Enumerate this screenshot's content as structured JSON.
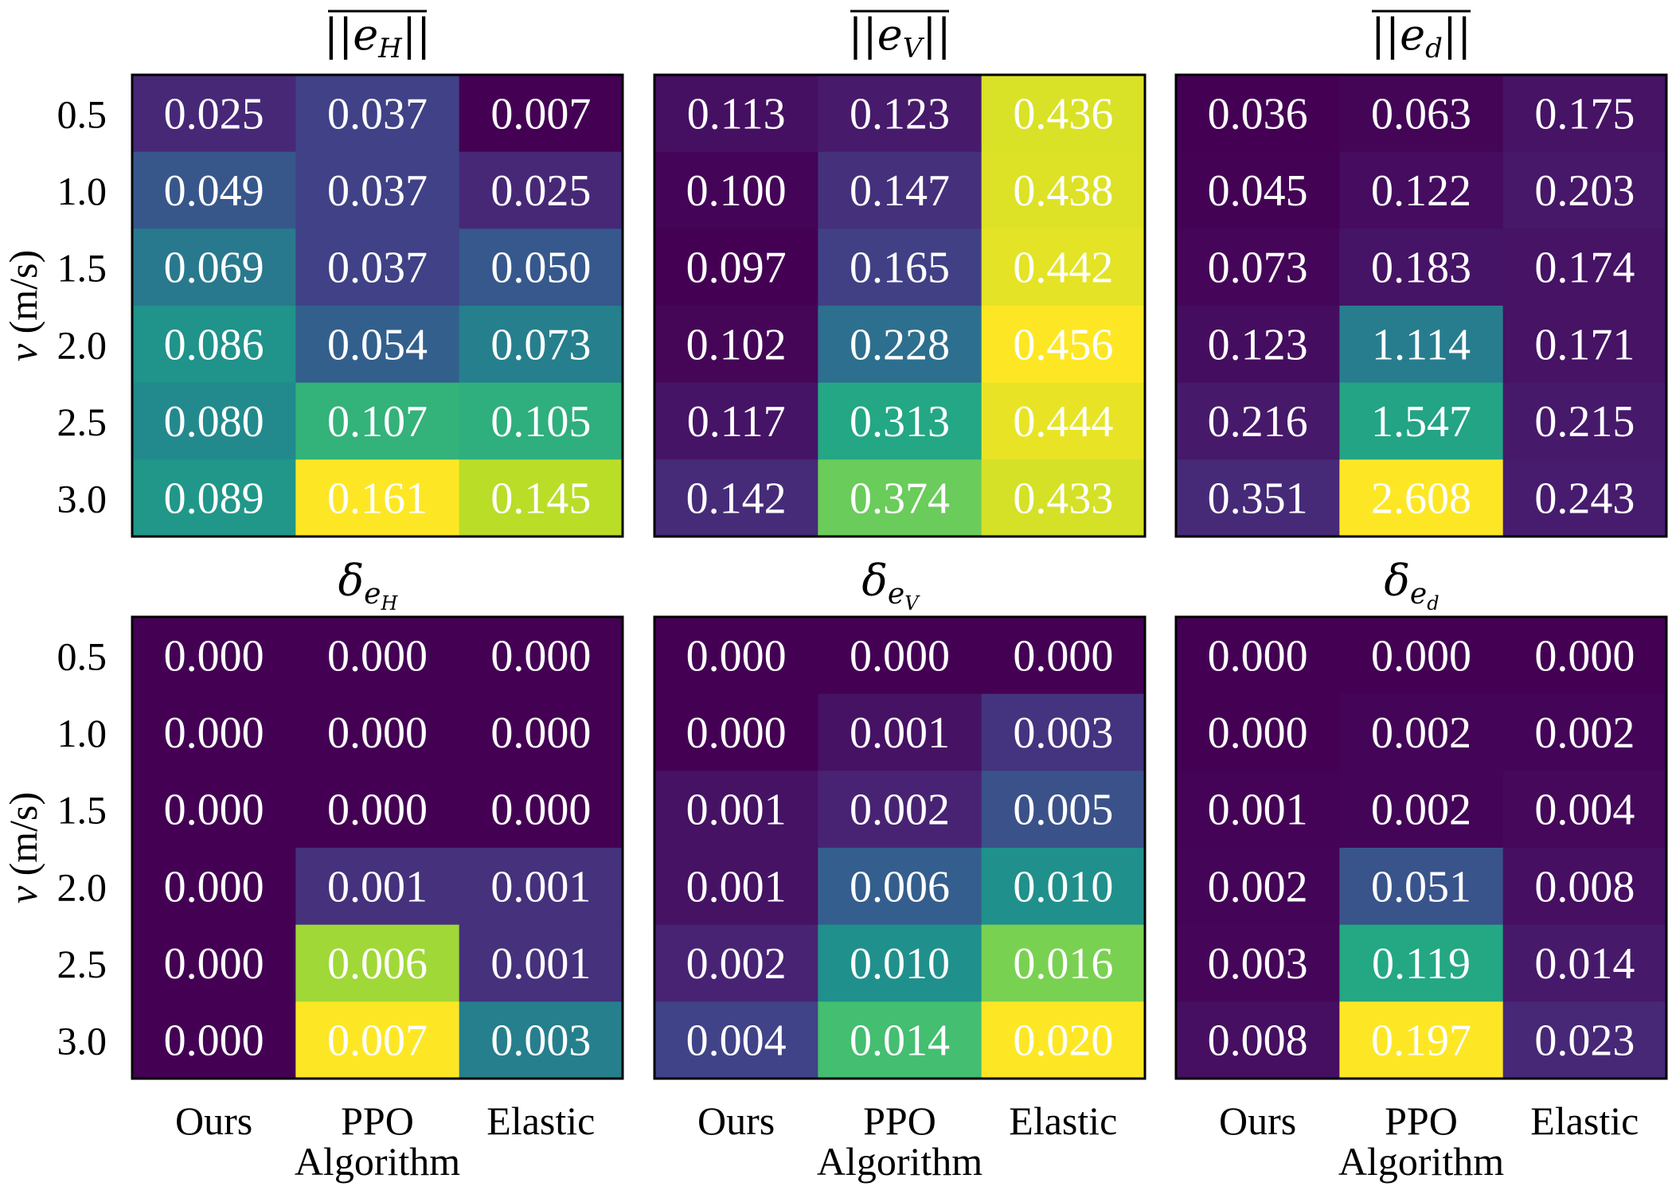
{
  "chart_data": {
    "type": "heatmap",
    "colormap": "viridis",
    "x_categories": [
      "Ours",
      "PPO",
      "Elastic"
    ],
    "y_categories": [
      "0.5",
      "1.0",
      "1.5",
      "2.0",
      "2.5",
      "3.0"
    ],
    "xlabel": "Algorithm",
    "ylabel": "v (m/s)",
    "ylabel_italic_part": "v",
    "ylabel_rest": " (m/s)",
    "panels": [
      {
        "title": "||e_H||",
        "title_base": "e",
        "title_sub": "H",
        "title_style": "overline-norm",
        "values": [
          [
            0.025,
            0.037,
            0.007
          ],
          [
            0.049,
            0.037,
            0.025
          ],
          [
            0.069,
            0.037,
            0.05
          ],
          [
            0.086,
            0.054,
            0.073
          ],
          [
            0.08,
            0.107,
            0.105
          ],
          [
            0.089,
            0.161,
            0.145
          ]
        ],
        "labels": [
          [
            "0.025",
            "0.037",
            "0.007"
          ],
          [
            "0.049",
            "0.037",
            "0.025"
          ],
          [
            "0.069",
            "0.037",
            "0.050"
          ],
          [
            "0.086",
            "0.054",
            "0.073"
          ],
          [
            "0.080",
            "0.107",
            "0.105"
          ],
          [
            "0.089",
            "0.161",
            "0.145"
          ]
        ]
      },
      {
        "title": "||e_V||",
        "title_base": "e",
        "title_sub": "V",
        "title_style": "overline-norm",
        "values": [
          [
            0.113,
            0.123,
            0.436
          ],
          [
            0.1,
            0.147,
            0.438
          ],
          [
            0.097,
            0.165,
            0.442
          ],
          [
            0.102,
            0.228,
            0.456
          ],
          [
            0.117,
            0.313,
            0.444
          ],
          [
            0.142,
            0.374,
            0.433
          ]
        ],
        "labels": [
          [
            "0.113",
            "0.123",
            "0.436"
          ],
          [
            "0.100",
            "0.147",
            "0.438"
          ],
          [
            "0.097",
            "0.165",
            "0.442"
          ],
          [
            "0.102",
            "0.228",
            "0.456"
          ],
          [
            "0.117",
            "0.313",
            "0.444"
          ],
          [
            "0.142",
            "0.374",
            "0.433"
          ]
        ]
      },
      {
        "title": "||e_d||",
        "title_base": "e",
        "title_sub": "d",
        "title_style": "overline-norm",
        "values": [
          [
            0.036,
            0.063,
            0.175
          ],
          [
            0.045,
            0.122,
            0.203
          ],
          [
            0.073,
            0.183,
            0.174
          ],
          [
            0.123,
            1.114,
            0.171
          ],
          [
            0.216,
            1.547,
            0.215
          ],
          [
            0.351,
            2.608,
            0.243
          ]
        ],
        "labels": [
          [
            "0.036",
            "0.063",
            "0.175"
          ],
          [
            "0.045",
            "0.122",
            "0.203"
          ],
          [
            "0.073",
            "0.183",
            "0.174"
          ],
          [
            "0.123",
            "1.114",
            "0.171"
          ],
          [
            "0.216",
            "1.547",
            "0.215"
          ],
          [
            "0.351",
            "2.608",
            "0.243"
          ]
        ]
      },
      {
        "title": "δ_{e_H}",
        "title_base": "δ",
        "title_sub": "e",
        "title_subsub": "H",
        "title_style": "delta",
        "values": [
          [
            0.0,
            0.0,
            0.0
          ],
          [
            0.0,
            0.0,
            0.0
          ],
          [
            0.0,
            0.0,
            0.0
          ],
          [
            0.0,
            0.001,
            0.001
          ],
          [
            0.0,
            0.006,
            0.001
          ],
          [
            0.0,
            0.007,
            0.003
          ]
        ],
        "labels": [
          [
            "0.000",
            "0.000",
            "0.000"
          ],
          [
            "0.000",
            "0.000",
            "0.000"
          ],
          [
            "0.000",
            "0.000",
            "0.000"
          ],
          [
            "0.000",
            "0.001",
            "0.001"
          ],
          [
            "0.000",
            "0.006",
            "0.001"
          ],
          [
            "0.000",
            "0.007",
            "0.003"
          ]
        ]
      },
      {
        "title": "δ_{e_V}",
        "title_base": "δ",
        "title_sub": "e",
        "title_subsub": "V",
        "title_style": "delta",
        "values": [
          [
            0.0,
            0.0,
            0.0
          ],
          [
            0.0,
            0.001,
            0.003
          ],
          [
            0.001,
            0.002,
            0.005
          ],
          [
            0.001,
            0.006,
            0.01
          ],
          [
            0.002,
            0.01,
            0.016
          ],
          [
            0.004,
            0.014,
            0.02
          ]
        ],
        "labels": [
          [
            "0.000",
            "0.000",
            "0.000"
          ],
          [
            "0.000",
            "0.001",
            "0.003"
          ],
          [
            "0.001",
            "0.002",
            "0.005"
          ],
          [
            "0.001",
            "0.006",
            "0.010"
          ],
          [
            "0.002",
            "0.010",
            "0.016"
          ],
          [
            "0.004",
            "0.014",
            "0.020"
          ]
        ]
      },
      {
        "title": "δ_{e_d}",
        "title_base": "δ",
        "title_sub": "e",
        "title_subsub": "d",
        "title_style": "delta",
        "values": [
          [
            0.0,
            0.0,
            0.0
          ],
          [
            0.0,
            0.002,
            0.002
          ],
          [
            0.001,
            0.002,
            0.004
          ],
          [
            0.002,
            0.051,
            0.008
          ],
          [
            0.003,
            0.119,
            0.014
          ],
          [
            0.008,
            0.197,
            0.023
          ]
        ],
        "labels": [
          [
            "0.000",
            "0.000",
            "0.000"
          ],
          [
            "0.000",
            "0.002",
            "0.002"
          ],
          [
            "0.001",
            "0.002",
            "0.004"
          ],
          [
            "0.002",
            "0.051",
            "0.008"
          ],
          [
            "0.003",
            "0.119",
            "0.014"
          ],
          [
            "0.008",
            "0.197",
            "0.023"
          ]
        ]
      }
    ]
  }
}
